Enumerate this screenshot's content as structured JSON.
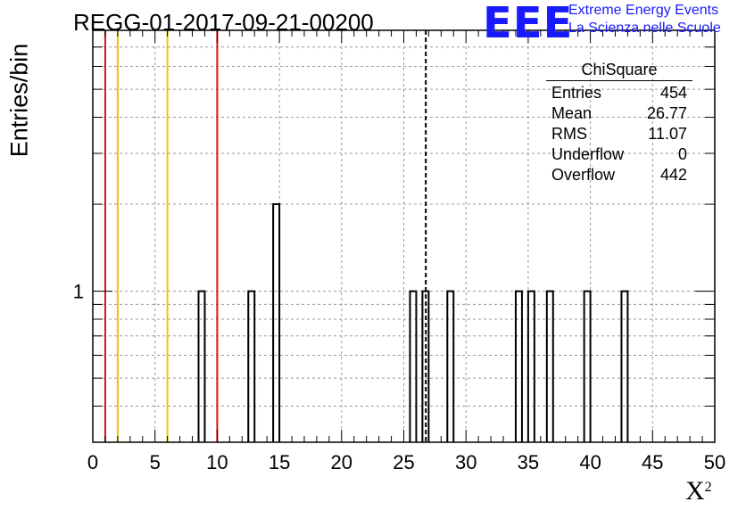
{
  "header": {
    "title": "REGG-01-2017-09-21-00200",
    "logo_mark": "EEE",
    "logo_line1": "Extreme Energy Events",
    "logo_line2": "La Scienza nelle Scuole"
  },
  "stats_box": {
    "title": "ChiSquare",
    "rows": [
      {
        "label": "Entries",
        "value": "454"
      },
      {
        "label": "Mean",
        "value": "26.77"
      },
      {
        "label": "RMS",
        "value": "11.07"
      },
      {
        "label": "Underflow",
        "value": "0"
      },
      {
        "label": "Overflow",
        "value": "442"
      }
    ]
  },
  "colors": {
    "red_line": "#dd1111",
    "yellow_line": "#f2c200",
    "logo_blue": "#1a1aff",
    "grid": "#9a9a9a"
  },
  "chart_data": {
    "type": "bar",
    "ylabel": "Entries/bin",
    "xlabel": "X",
    "xlabel_superscript": "2",
    "xlim": [
      0,
      50
    ],
    "ylim_log": [
      0.3,
      8
    ],
    "y_scale": "log",
    "bin_width": 0.5,
    "grid": true,
    "x_ticks": [
      "0",
      "5",
      "10",
      "15",
      "20",
      "25",
      "30",
      "35",
      "40",
      "45",
      "50"
    ],
    "y_tick_labels": [
      {
        "value": 1,
        "label": "1"
      }
    ],
    "bins": [
      {
        "x": 8.5,
        "count": 1
      },
      {
        "x": 12.5,
        "count": 1
      },
      {
        "x": 14.5,
        "count": 2
      },
      {
        "x": 25.5,
        "count": 1
      },
      {
        "x": 26.5,
        "count": 1
      },
      {
        "x": 28.5,
        "count": 1
      },
      {
        "x": 34.0,
        "count": 1
      },
      {
        "x": 35.0,
        "count": 1
      },
      {
        "x": 36.5,
        "count": 1
      },
      {
        "x": 39.5,
        "count": 1
      },
      {
        "x": 42.5,
        "count": 1
      }
    ],
    "vertical_lines": [
      {
        "x": 1,
        "color": "red"
      },
      {
        "x": 2,
        "color": "yellow"
      },
      {
        "x": 6,
        "color": "yellow"
      },
      {
        "x": 10,
        "color": "red"
      }
    ],
    "mean_line": 26.77
  }
}
